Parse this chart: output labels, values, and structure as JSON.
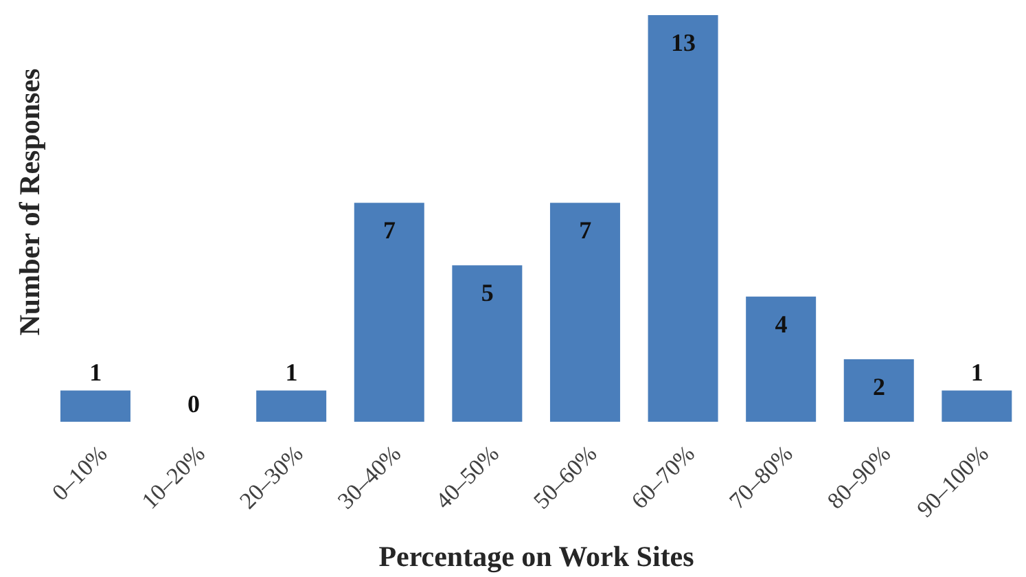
{
  "chart_data": {
    "type": "bar",
    "xlabel": "Percentage on Work Sites",
    "ylabel": "Number of Responses",
    "categories": [
      "0–10%",
      "10–20%",
      "20–30%",
      "30–40%",
      "40–50%",
      "50–60%",
      "60–70%",
      "70–80%",
      "80–90%",
      "90–100%"
    ],
    "values": [
      1,
      0,
      1,
      7,
      5,
      7,
      13,
      4,
      2,
      1
    ],
    "color": "#4a7ebb",
    "data_labels": true,
    "tick_labels": "x"
  }
}
